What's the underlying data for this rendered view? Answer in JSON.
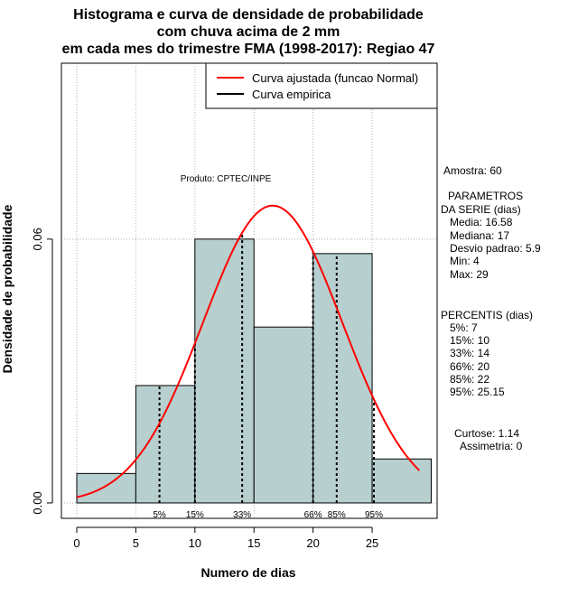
{
  "chart_data": {
    "type": "histogram",
    "title_lines": [
      "Histograma e curva de densidade de probabilidade",
      "com chuva acima de 2 mm",
      "em cada mes do trimestre FMA (1998-2017): Regiao 47"
    ],
    "xlabel": "Numero de dias",
    "ylabel": "Densidade de probabilidade",
    "xlim": [
      -1.3,
      30.5
    ],
    "ylim": [
      -0.0035,
      0.1
    ],
    "x_ticks": [
      0,
      5,
      10,
      15,
      20,
      25
    ],
    "x_tick_labels": [
      "0",
      "5",
      "10",
      "15",
      "20",
      "25"
    ],
    "y_ticks": [
      0.0,
      0.06
    ],
    "y_tick_labels": [
      "0.00",
      "0.06"
    ],
    "grid_x": [
      0,
      5,
      10,
      15,
      20,
      25
    ],
    "grid_y": [
      0.0,
      0.06,
      0.1
    ],
    "bars": [
      {
        "x0": 0,
        "x1": 5,
        "density": 0.0067
      },
      {
        "x0": 5,
        "x1": 10,
        "density": 0.0267
      },
      {
        "x0": 10,
        "x1": 15,
        "density": 0.06
      },
      {
        "x0": 15,
        "x1": 20,
        "density": 0.04
      },
      {
        "x0": 20,
        "x1": 25,
        "density": 0.0567
      },
      {
        "x0": 25,
        "x1": 30,
        "density": 0.01
      }
    ],
    "bar_color": "#b7cfcf",
    "normal_curve": {
      "mean": 16.58,
      "sd": 5.9,
      "x_from": 0,
      "x_to": 29,
      "color": "#ff0000"
    },
    "percentile_lines": [
      {
        "label": "5%",
        "x": 7
      },
      {
        "label": "15%",
        "x": 10
      },
      {
        "label": "33%",
        "x": 14
      },
      {
        "label": "66%",
        "x": 20
      },
      {
        "label": "85%",
        "x": 22
      },
      {
        "label": "95%",
        "x": 25.15
      }
    ],
    "legend": {
      "position": "top-right",
      "entries": [
        {
          "label": "Curva ajustada (funcao Normal)",
          "color": "#ff0000"
        },
        {
          "label": "Curva empirica",
          "color": "#000000"
        }
      ]
    },
    "annotation": "Produto: CPTEC/INPE"
  },
  "stats_panel": {
    "amostra": "Amostra: 60",
    "params_header_1": "PARAMETROS",
    "params_header_2": "DA SERIE (dias)",
    "params": [
      "Media: 16.58",
      "Mediana: 17",
      "Desvio padrao: 5.9",
      "Min: 4",
      "Max: 29"
    ],
    "percentis_header": "PERCENTIS (dias)",
    "percentis": [
      "5%: 7",
      "15%: 10",
      "33%: 14",
      "66%: 20",
      "85%: 22",
      "95%: 25.15"
    ],
    "curtose": "Curtose: 1.14",
    "assimetria": "Assimetria: 0"
  }
}
